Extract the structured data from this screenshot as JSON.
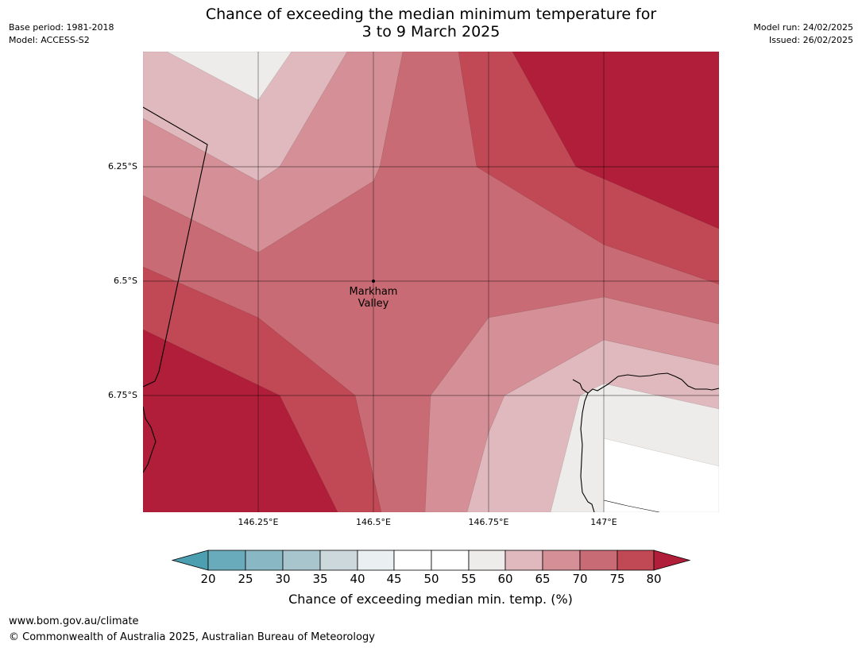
{
  "header": {
    "title_line1": "Chance of exceeding the median minimum temperature for",
    "title_line2": "3 to 9 March 2025",
    "base_period": "Base period: 1981-2018",
    "model": "Model: ACCESS-S2",
    "model_run": "Model run: 24/02/2025",
    "issued": "Issued: 26/02/2025"
  },
  "map": {
    "lat_labels": [
      "6.25°S",
      "6.5°S",
      "6.75°S"
    ],
    "lon_labels": [
      "146.25°E",
      "146.5°E",
      "146.75°E",
      "147°E"
    ],
    "place": {
      "name_line1": "Markham",
      "name_line2": "Valley"
    },
    "band_colors": {
      "55-60": "#eeecea",
      "60-65": "#e0b9be",
      "65-70": "#d49096",
      "70-75": "#c96b74",
      "75-80": "#c04955",
      "80+": "#b01e39"
    }
  },
  "colorbar": {
    "ticks": [
      "20",
      "25",
      "30",
      "35",
      "40",
      "45",
      "50",
      "55",
      "60",
      "65",
      "70",
      "75",
      "80"
    ],
    "colors": {
      "below": "#4b9fb1",
      "20-25": "#6aabbb",
      "25-30": "#89b7c4",
      "30-35": "#a8c5cd",
      "35-40": "#ccd8dc",
      "40-45": "#eaf0f2",
      "45-50": "#ffffff",
      "50-55": "#ffffff",
      "55-60": "#eeecea",
      "60-65": "#e0b9be",
      "65-70": "#d49096",
      "70-75": "#c96b74",
      "75-80": "#c04955",
      "above": "#b01e39"
    },
    "label": "Chance of exceeding median min. temp. (%)"
  },
  "footer": {
    "url": "www.bom.gov.au/climate",
    "copyright": "© Commonwealth of Australia 2025, Australian Bureau of Meteorology"
  }
}
